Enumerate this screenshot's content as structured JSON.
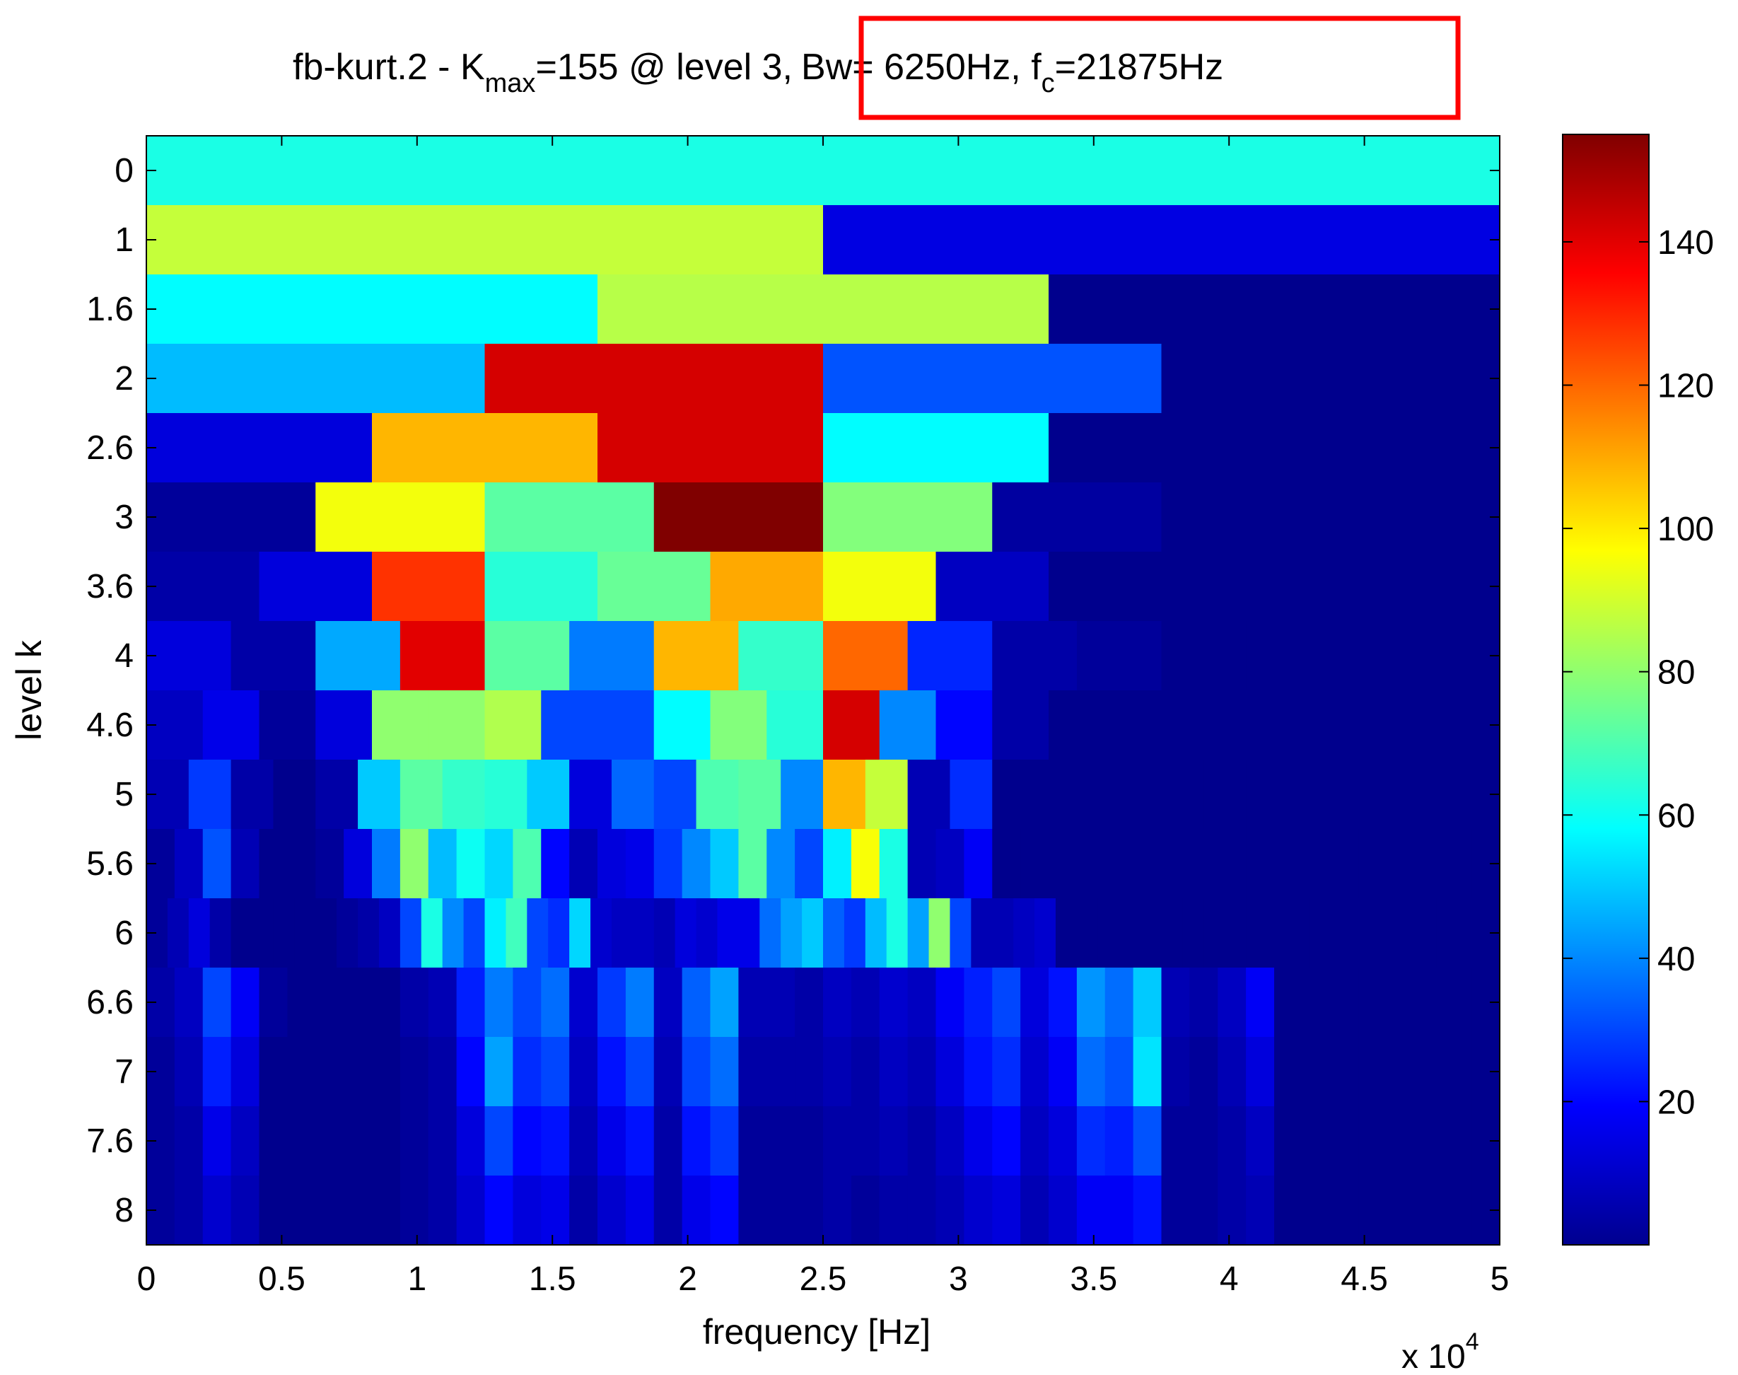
{
  "chart_data": {
    "type": "heatmap",
    "title": {
      "prefix": "fb-kurt.2 - K",
      "prefix_sub": "max",
      "kmax_part": "=155 @ level 3,",
      "bw_part": "Bw= 6250Hz, f",
      "bw_sub": "c",
      "fc_part": "=21875Hz"
    },
    "xlabel": "frequency [Hz]",
    "ylabel": "level k",
    "x_multiplier": "x 10",
    "x_multiplier_exp": "4",
    "xlim": [
      0,
      50000
    ],
    "xticks": [
      "0",
      "0.5",
      "1",
      "1.5",
      "2",
      "2.5",
      "3",
      "3.5",
      "4",
      "4.5",
      "5"
    ],
    "clim": [
      0,
      155
    ],
    "colorbar_ticks": [
      "20",
      "40",
      "60",
      "80",
      "100",
      "120",
      "140"
    ],
    "colorbar_values": [
      20,
      40,
      60,
      80,
      100,
      120,
      140
    ],
    "colormap": "jet",
    "highlight_box_color": "#ff0000",
    "grid": false,
    "rows": [
      {
        "level": "0",
        "values": [
          62
        ]
      },
      {
        "level": "1",
        "values": [
          88,
          15
        ]
      },
      {
        "level": "1.6",
        "values": [
          58,
          86,
          2
        ]
      },
      {
        "level": "2",
        "values": [
          48,
          142,
          32,
          2
        ]
      },
      {
        "level": "2.6",
        "values": [
          14,
          108,
          142,
          58,
          2,
          2
        ]
      },
      {
        "level": "3",
        "values": [
          4,
          95,
          72,
          155,
          78,
          5,
          2,
          2
        ]
      },
      {
        "level": "3.6",
        "values": [
          6,
          14,
          128,
          64,
          74,
          110,
          95,
          10,
          2,
          2,
          2,
          2
        ]
      },
      {
        "level": "4",
        "values": [
          14,
          6,
          45,
          140,
          72,
          38,
          108,
          66,
          120,
          25,
          6,
          4,
          2,
          2,
          2,
          2
        ]
      },
      {
        "level": "4.6",
        "values": [
          10,
          16,
          4,
          14,
          80,
          80,
          85,
          30,
          30,
          58,
          78,
          64,
          142,
          40,
          20,
          6,
          2,
          2,
          2,
          2,
          2,
          2,
          2,
          2
        ]
      },
      {
        "level": "5",
        "values": [
          8,
          28,
          6,
          2,
          6,
          50,
          72,
          66,
          64,
          50,
          14,
          35,
          30,
          70,
          72,
          40,
          108,
          88,
          8,
          26,
          2,
          2,
          2,
          2,
          2,
          2,
          2,
          2,
          2,
          2,
          2,
          2
        ]
      },
      {
        "level": "5.6",
        "values": [
          4,
          10,
          32,
          8,
          2,
          2,
          4,
          14,
          38,
          80,
          48,
          60,
          52,
          70,
          20,
          8,
          14,
          16,
          28,
          40,
          50,
          72,
          40,
          30,
          56,
          96,
          62,
          8,
          10,
          18,
          2,
          2,
          2,
          2,
          2,
          2,
          2,
          2,
          2,
          2,
          2,
          2,
          2,
          2,
          2,
          2,
          2,
          2
        ]
      },
      {
        "level": "6",
        "values": [
          4,
          8,
          14,
          6,
          2,
          2,
          2,
          2,
          2,
          4,
          6,
          10,
          30,
          62,
          40,
          30,
          56,
          68,
          30,
          26,
          52,
          12,
          10,
          10,
          8,
          14,
          12,
          16,
          16,
          36,
          44,
          50,
          34,
          28,
          48,
          62,
          44,
          80,
          30,
          8,
          8,
          10,
          12,
          2,
          2,
          2,
          2,
          2,
          2,
          2,
          2,
          2,
          2,
          2,
          2,
          2,
          2,
          2,
          2,
          2,
          2,
          2,
          2,
          2
        ]
      }
    ],
    "rows_fine": [
      {
        "level": "6.6",
        "values": [
          6,
          10,
          30,
          18,
          4,
          2,
          2,
          2,
          2,
          6,
          8,
          24,
          38,
          30,
          36,
          12,
          28,
          38,
          10,
          34,
          44,
          8,
          8,
          6,
          10,
          8,
          12,
          10,
          18,
          24,
          30,
          14,
          22,
          42,
          36,
          50,
          8,
          6,
          10,
          18,
          2,
          2,
          2,
          2,
          2,
          2,
          2,
          2
        ]
      },
      {
        "level": "7",
        "values": [
          4,
          8,
          24,
          14,
          2,
          2,
          2,
          2,
          2,
          4,
          6,
          20,
          44,
          26,
          30,
          10,
          22,
          30,
          8,
          30,
          36,
          6,
          6,
          6,
          8,
          6,
          10,
          8,
          14,
          22,
          26,
          12,
          18,
          36,
          32,
          54,
          6,
          4,
          8,
          14,
          2,
          2,
          2,
          2,
          2,
          2,
          2,
          2
        ]
      },
      {
        "level": "7.6",
        "values": [
          4,
          6,
          16,
          10,
          2,
          2,
          2,
          2,
          2,
          4,
          6,
          14,
          30,
          20,
          22,
          8,
          16,
          22,
          6,
          22,
          28,
          4,
          4,
          4,
          6,
          6,
          8,
          6,
          10,
          16,
          20,
          10,
          14,
          26,
          24,
          32,
          4,
          4,
          6,
          10,
          2,
          2,
          2,
          2,
          2,
          2,
          2,
          2
        ]
      },
      {
        "level": "8",
        "values": [
          4,
          6,
          12,
          8,
          2,
          2,
          2,
          2,
          2,
          4,
          6,
          12,
          20,
          14,
          16,
          6,
          12,
          16,
          6,
          16,
          20,
          4,
          4,
          4,
          6,
          4,
          6,
          6,
          8,
          12,
          14,
          8,
          12,
          18,
          18,
          22,
          4,
          4,
          6,
          8,
          2,
          2,
          2,
          2,
          2,
          2,
          2,
          2
        ]
      }
    ]
  }
}
